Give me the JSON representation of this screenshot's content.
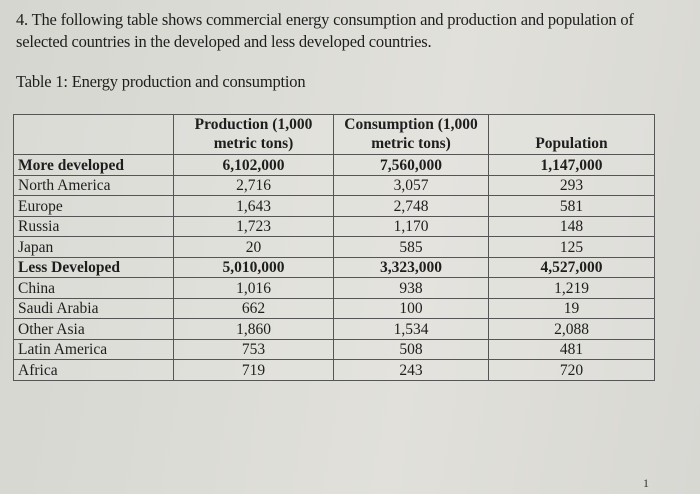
{
  "question": {
    "text": "4. The following table shows commercial energy consumption and production and population of selected countries in the developed and less developed countries."
  },
  "caption": "Table 1: Energy production and consumption",
  "table": {
    "headers": [
      "",
      "Production (1,000 metric tons)",
      "Consumption (1,000 metric tons)",
      "Population"
    ],
    "rows": [
      {
        "label": "More developed",
        "production": "6,102,000",
        "consumption": "7,560,000",
        "population": "1,147,000",
        "group": true
      },
      {
        "label": "North America",
        "production": "2,716",
        "consumption": "3,057",
        "population": "293",
        "group": false
      },
      {
        "label": "Europe",
        "production": "1,643",
        "consumption": "2,748",
        "population": "581",
        "group": false
      },
      {
        "label": "Russia",
        "production": "1,723",
        "consumption": "1,170",
        "population": "148",
        "group": false
      },
      {
        "label": "Japan",
        "production": "20",
        "consumption": "585",
        "population": "125",
        "group": false
      },
      {
        "label": "Less Developed",
        "production": "5,010,000",
        "consumption": "3,323,000",
        "population": "4,527,000",
        "group": true
      },
      {
        "label": "China",
        "production": "1,016",
        "consumption": "938",
        "population": "1,219",
        "group": false
      },
      {
        "label": "Saudi Arabia",
        "production": "662",
        "consumption": "100",
        "population": "19",
        "group": false
      },
      {
        "label": "Other Asia",
        "production": "1,860",
        "consumption": "1,534",
        "population": "2,088",
        "group": false
      },
      {
        "label": "Latin America",
        "production": "753",
        "consumption": "508",
        "population": "481",
        "group": false
      },
      {
        "label": "Africa",
        "production": "719",
        "consumption": "243",
        "population": "720",
        "group": false
      }
    ]
  },
  "page_number": "1"
}
